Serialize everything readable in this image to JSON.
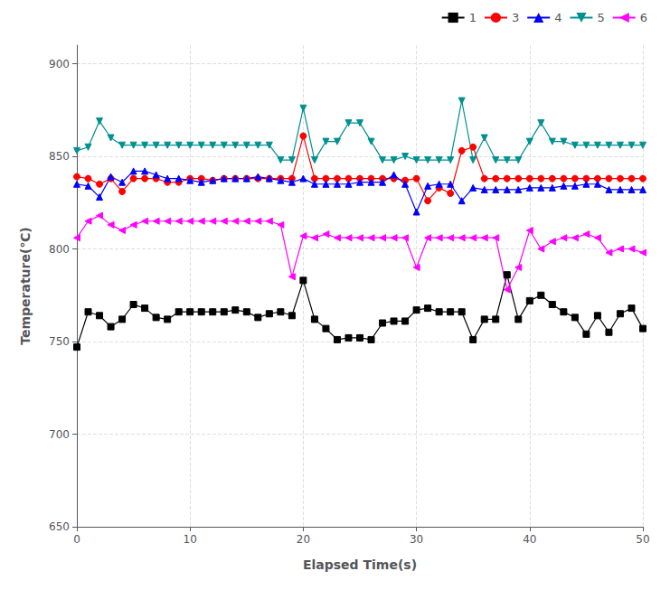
{
  "chart_data": {
    "type": "line",
    "xlabel": "Elapsed Time(s)",
    "ylabel": "Temperature(℃)",
    "xlim": [
      0,
      50
    ],
    "ylim": [
      650,
      910
    ],
    "xticks": [
      0,
      10,
      20,
      30,
      40,
      50
    ],
    "yticks": [
      650,
      700,
      750,
      800,
      850,
      900
    ],
    "grid": true,
    "legend": "upper right",
    "x": [
      0,
      1,
      2,
      3,
      4,
      5,
      6,
      7,
      8,
      9,
      10,
      11,
      12,
      13,
      14,
      15,
      16,
      17,
      18,
      19,
      20,
      21,
      22,
      23,
      24,
      25,
      26,
      27,
      28,
      29,
      30,
      31,
      32,
      33,
      34,
      35,
      36,
      37,
      38,
      39,
      40,
      41,
      42,
      43,
      44,
      45,
      46,
      47,
      48,
      49,
      50
    ],
    "series": [
      {
        "name": "1",
        "color": "#000000",
        "marker": "square",
        "values": [
          747,
          766,
          764,
          758,
          762,
          770,
          768,
          763,
          762,
          766,
          766,
          766,
          766,
          766,
          767,
          766,
          763,
          765,
          766,
          764,
          783,
          762,
          757,
          751,
          752,
          752,
          751,
          760,
          761,
          761,
          767,
          768,
          766,
          766,
          766,
          751,
          762,
          762,
          786,
          762,
          772,
          775,
          770,
          766,
          763,
          754,
          764,
          755,
          765,
          768,
          757
        ]
      },
      {
        "name": "3",
        "color": "#ff0000",
        "marker": "circle",
        "values": [
          839,
          838,
          835,
          838,
          831,
          838,
          838,
          838,
          836,
          836,
          838,
          838,
          837,
          838,
          838,
          838,
          838,
          838,
          838,
          838,
          861,
          838,
          838,
          838,
          838,
          838,
          838,
          838,
          838,
          837,
          838,
          826,
          833,
          830,
          853,
          855,
          838,
          838,
          838,
          838,
          838,
          838,
          838,
          838,
          838,
          838,
          838,
          838,
          838,
          838,
          838
        ]
      },
      {
        "name": "4",
        "color": "#0000ff",
        "marker": "triangle-up",
        "values": [
          835,
          834,
          828,
          839,
          836,
          842,
          842,
          840,
          838,
          838,
          837,
          836,
          837,
          838,
          838,
          838,
          839,
          838,
          837,
          836,
          838,
          835,
          835,
          835,
          835,
          836,
          836,
          836,
          840,
          835,
          820,
          834,
          835,
          835,
          826,
          833,
          832,
          832,
          832,
          832,
          833,
          833,
          833,
          834,
          834,
          835,
          835,
          832,
          832,
          832,
          832
        ]
      },
      {
        "name": "5",
        "color": "#009090",
        "marker": "triangle-down",
        "values": [
          853,
          855,
          869,
          860,
          856,
          856,
          856,
          856,
          856,
          856,
          856,
          856,
          856,
          856,
          856,
          856,
          856,
          856,
          848,
          848,
          876,
          848,
          858,
          858,
          868,
          868,
          858,
          848,
          848,
          850,
          848,
          848,
          848,
          848,
          880,
          848,
          860,
          848,
          848,
          848,
          858,
          868,
          858,
          858,
          856,
          856,
          856,
          856,
          856,
          856,
          856
        ]
      },
      {
        "name": "6",
        "color": "#ff00ff",
        "marker": "triangle-left",
        "values": [
          806,
          815,
          818,
          813,
          810,
          813,
          815,
          815,
          815,
          815,
          815,
          815,
          815,
          815,
          815,
          815,
          815,
          815,
          813,
          785,
          807,
          806,
          808,
          806,
          806,
          806,
          806,
          806,
          806,
          806,
          790,
          806,
          806,
          806,
          806,
          806,
          806,
          806,
          778,
          790,
          810,
          800,
          804,
          806,
          806,
          808,
          806,
          798,
          800,
          800,
          798
        ]
      }
    ]
  }
}
